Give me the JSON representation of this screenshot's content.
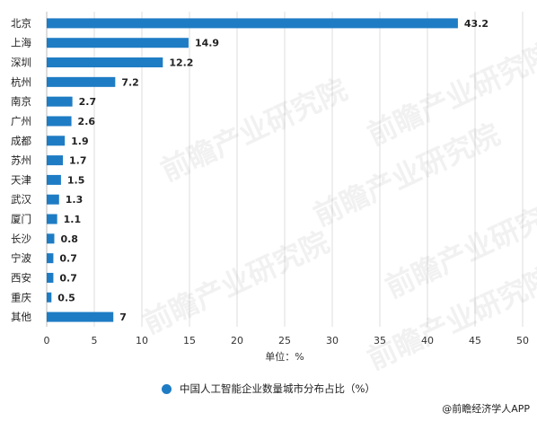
{
  "chart_data": {
    "type": "bar",
    "orientation": "horizontal",
    "categories": [
      "北京",
      "上海",
      "深圳",
      "杭州",
      "南京",
      "广州",
      "成都",
      "苏州",
      "天津",
      "武汉",
      "厦门",
      "长沙",
      "宁波",
      "西安",
      "重庆",
      "其他"
    ],
    "values": [
      43.2,
      14.9,
      12.2,
      7.2,
      2.7,
      2.6,
      1.9,
      1.7,
      1.5,
      1.3,
      1.1,
      0.8,
      0.7,
      0.7,
      0.5,
      7
    ],
    "value_labels": [
      "43.2",
      "14.9",
      "12.2",
      "7.2",
      "2.7",
      "2.6",
      "1.9",
      "1.7",
      "1.5",
      "1.3",
      "1.1",
      "0.8",
      "0.7",
      "0.7",
      "0.5",
      "7"
    ],
    "xticks": [
      "0",
      "5",
      "10",
      "15",
      "20",
      "25",
      "30",
      "35",
      "40",
      "45",
      "50"
    ],
    "xlim": [
      0,
      50
    ],
    "xlabel": "单位：%",
    "series": [
      {
        "name": "中国人工智能企业数量城市分布占比（%）"
      }
    ],
    "legend_position": "bottom",
    "grid": true,
    "bar_color": "#1e7cc4"
  },
  "credit": "@前瞻经济学人APP",
  "watermark": "前瞻产业研究院"
}
